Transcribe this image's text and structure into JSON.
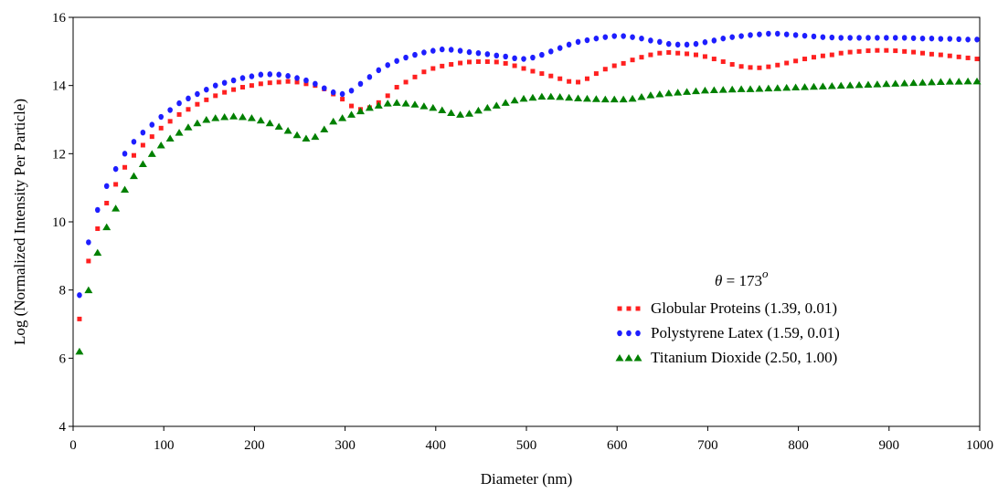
{
  "chart_data": {
    "type": "scatter",
    "title": "",
    "xlabel": "Diameter (nm)",
    "ylabel": "Log (Normalized Intensity Per Particle)",
    "xlim": [
      0,
      1000
    ],
    "ylim": [
      4,
      16
    ],
    "xticks": [
      "0",
      "100",
      "200",
      "300",
      "400",
      "500",
      "600",
      "700",
      "800",
      "900",
      "1000"
    ],
    "yticks": [
      "4",
      "6",
      "8",
      "10",
      "12",
      "14",
      "16"
    ],
    "grid": false,
    "legend_position": "lower-right",
    "annotation": {
      "theta_symbol": "θ",
      "equals_text": " = 173",
      "superscript": "o"
    },
    "x": [
      7,
      17,
      27,
      37,
      47,
      57,
      67,
      77,
      87,
      97,
      107,
      117,
      127,
      137,
      147,
      157,
      167,
      177,
      187,
      197,
      207,
      217,
      227,
      237,
      247,
      257,
      267,
      277,
      287,
      297,
      307,
      317,
      327,
      337,
      347,
      357,
      367,
      377,
      387,
      397,
      407,
      417,
      427,
      437,
      447,
      457,
      467,
      477,
      487,
      497,
      507,
      517,
      527,
      537,
      547,
      557,
      567,
      577,
      587,
      597,
      607,
      617,
      627,
      637,
      647,
      657,
      667,
      677,
      687,
      697,
      707,
      717,
      727,
      737,
      747,
      757,
      767,
      777,
      787,
      797,
      807,
      817,
      827,
      837,
      847,
      857,
      867,
      877,
      887,
      897,
      907,
      917,
      927,
      937,
      947,
      957,
      967,
      977,
      987,
      997
    ],
    "series": [
      {
        "name": "Globular Proteins (1.39, 0.01)",
        "marker": "square",
        "color": "#ff2020",
        "values": [
          7.15,
          8.85,
          9.8,
          10.55,
          11.1,
          11.6,
          11.95,
          12.25,
          12.5,
          12.75,
          12.95,
          13.15,
          13.3,
          13.45,
          13.58,
          13.7,
          13.8,
          13.88,
          13.95,
          14.0,
          14.05,
          14.08,
          14.1,
          14.12,
          14.1,
          14.05,
          14.0,
          13.9,
          13.75,
          13.6,
          13.4,
          13.3,
          13.35,
          13.5,
          13.7,
          13.95,
          14.1,
          14.25,
          14.4,
          14.5,
          14.57,
          14.62,
          14.66,
          14.69,
          14.7,
          14.7,
          14.69,
          14.65,
          14.58,
          14.5,
          14.42,
          14.35,
          14.28,
          14.2,
          14.12,
          14.1,
          14.2,
          14.35,
          14.48,
          14.58,
          14.65,
          14.75,
          14.83,
          14.9,
          14.95,
          14.97,
          14.95,
          14.93,
          14.9,
          14.85,
          14.78,
          14.7,
          14.62,
          14.56,
          14.53,
          14.52,
          14.55,
          14.6,
          14.66,
          14.72,
          14.78,
          14.83,
          14.87,
          14.9,
          14.95,
          14.98,
          15.0,
          15.02,
          15.03,
          15.03,
          15.02,
          15.0,
          14.98,
          14.95,
          14.92,
          14.9,
          14.87,
          14.84,
          14.81,
          14.78
        ]
      },
      {
        "name": "Polystyrene Latex (1.59, 0.01)",
        "marker": "diamond",
        "color": "#1e1eff",
        "values": [
          7.85,
          9.4,
          10.35,
          11.05,
          11.55,
          12.0,
          12.35,
          12.62,
          12.85,
          13.08,
          13.28,
          13.48,
          13.62,
          13.75,
          13.88,
          14.0,
          14.08,
          14.15,
          14.22,
          14.27,
          14.32,
          14.33,
          14.32,
          14.28,
          14.22,
          14.15,
          14.05,
          13.92,
          13.8,
          13.75,
          13.85,
          14.05,
          14.25,
          14.45,
          14.6,
          14.72,
          14.82,
          14.9,
          14.97,
          15.02,
          15.06,
          15.05,
          15.02,
          14.98,
          14.95,
          14.92,
          14.88,
          14.85,
          14.8,
          14.78,
          14.82,
          14.9,
          15.0,
          15.1,
          15.2,
          15.28,
          15.33,
          15.38,
          15.42,
          15.45,
          15.45,
          15.42,
          15.38,
          15.32,
          15.28,
          15.22,
          15.2,
          15.2,
          15.22,
          15.27,
          15.32,
          15.38,
          15.42,
          15.45,
          15.48,
          15.5,
          15.52,
          15.52,
          15.5,
          15.48,
          15.46,
          15.44,
          15.42,
          15.41,
          15.4,
          15.4,
          15.4,
          15.4,
          15.4,
          15.4,
          15.4,
          15.4,
          15.39,
          15.38,
          15.38,
          15.37,
          15.37,
          15.36,
          15.35,
          15.35
        ]
      },
      {
        "name": "Titanium Dioxide (2.50, 1.00)",
        "marker": "triangle",
        "color": "#008000",
        "values": [
          6.2,
          8.0,
          9.1,
          9.85,
          10.4,
          10.95,
          11.35,
          11.7,
          12.0,
          12.25,
          12.45,
          12.62,
          12.78,
          12.9,
          13.0,
          13.05,
          13.08,
          13.1,
          13.08,
          13.05,
          12.98,
          12.9,
          12.8,
          12.68,
          12.55,
          12.45,
          12.5,
          12.72,
          12.95,
          13.05,
          13.15,
          13.25,
          13.35,
          13.42,
          13.48,
          13.5,
          13.48,
          13.45,
          13.4,
          13.35,
          13.28,
          13.2,
          13.15,
          13.18,
          13.27,
          13.35,
          13.42,
          13.5,
          13.57,
          13.62,
          13.65,
          13.68,
          13.68,
          13.67,
          13.65,
          13.63,
          13.62,
          13.61,
          13.6,
          13.6,
          13.6,
          13.62,
          13.67,
          13.72,
          13.75,
          13.78,
          13.8,
          13.82,
          13.84,
          13.86,
          13.87,
          13.88,
          13.89,
          13.9,
          13.9,
          13.91,
          13.92,
          13.93,
          13.94,
          13.95,
          13.96,
          13.97,
          13.98,
          13.99,
          14.0,
          14.01,
          14.02,
          14.03,
          14.04,
          14.05,
          14.06,
          14.07,
          14.08,
          14.09,
          14.1,
          14.11,
          14.12,
          14.12,
          14.13,
          14.13
        ]
      }
    ]
  }
}
